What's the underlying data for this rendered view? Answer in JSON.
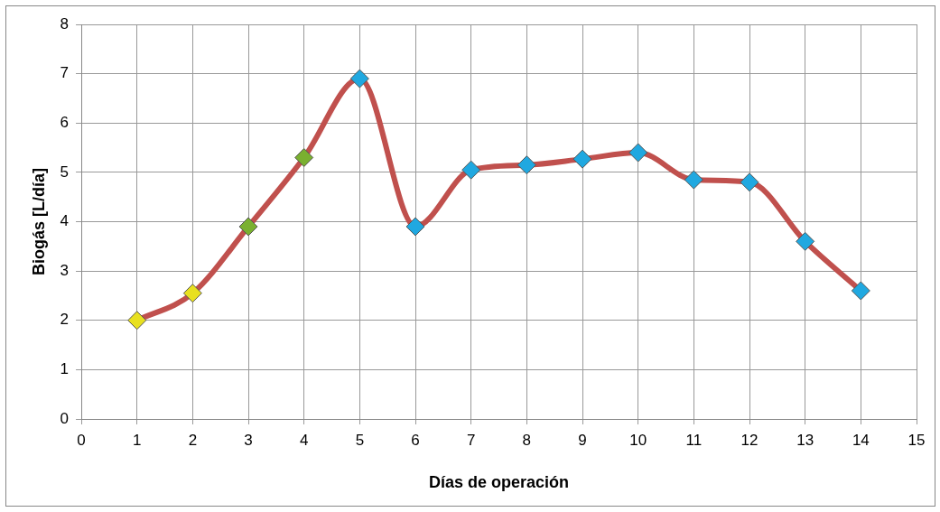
{
  "chart_data": {
    "type": "line",
    "xlabel": "Días de operación",
    "ylabel": "Biogás [L/día]",
    "x": [
      1,
      2,
      3,
      4,
      5,
      6,
      7,
      8,
      9,
      10,
      11,
      12,
      13,
      14
    ],
    "series": [
      {
        "color": "#c0504d",
        "values": [
          2.0,
          2.55,
          3.9,
          5.3,
          6.9,
          3.9,
          5.05,
          5.15,
          5.27,
          5.4,
          4.85,
          4.8,
          3.6,
          2.6
        ],
        "colors": [
          "#e8e020",
          "#e8e020",
          "#7ab030",
          "#7ab030",
          "#20a8e0",
          "#20a8e0",
          "#20a8e0",
          "#20a8e0",
          "#20a8e0",
          "#20a8e0",
          "#20a8e0",
          "#20a8e0",
          "#20a8e0",
          "#20a8e0"
        ]
      }
    ],
    "xlim": [
      0,
      15
    ],
    "xticks": [
      0,
      1,
      2,
      3,
      4,
      5,
      6,
      7,
      8,
      9,
      10,
      11,
      12,
      13,
      14,
      15
    ],
    "ylim": [
      0,
      8
    ],
    "yticks": [
      0,
      1,
      2,
      3,
      4,
      5,
      6,
      7,
      8
    ],
    "grid": true,
    "legend": false,
    "marker": "diamond",
    "line_style": "solid"
  }
}
